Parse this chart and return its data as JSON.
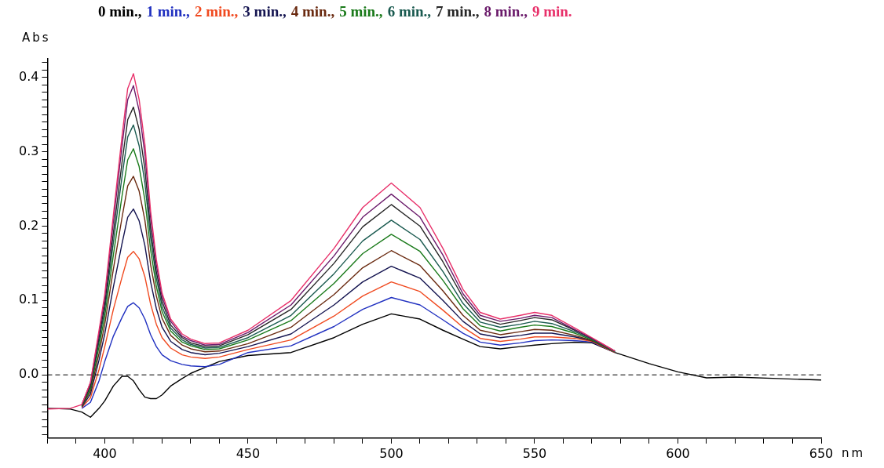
{
  "chart_data": {
    "type": "line",
    "xlabel": "nm",
    "ylabel": "Abs",
    "x": [
      380,
      388,
      392,
      395,
      398,
      400,
      403,
      406,
      408,
      410,
      412,
      414,
      416,
      418,
      420,
      423,
      427,
      430,
      435,
      440,
      450,
      465,
      480,
      490,
      500,
      510,
      518,
      525,
      531,
      538,
      545,
      550,
      556,
      564,
      570,
      578,
      590,
      600,
      610,
      620,
      635,
      650
    ],
    "series": [
      {
        "name": "0 min.,",
        "color": "#000000",
        "values": [
          -0.045,
          -0.046,
          -0.05,
          -0.057,
          -0.045,
          -0.035,
          -0.015,
          -0.002,
          -0.002,
          -0.008,
          -0.02,
          -0.03,
          -0.032,
          -0.032,
          -0.027,
          -0.015,
          -0.005,
          0.002,
          0.01,
          0.018,
          0.026,
          0.03,
          0.05,
          0.068,
          0.082,
          0.075,
          0.06,
          0.048,
          0.038,
          0.035,
          0.038,
          0.04,
          0.042,
          0.044,
          0.043,
          0.03,
          0.015,
          0.004,
          -0.004,
          -0.003,
          -0.005,
          -0.007
        ]
      },
      {
        "name": "1 min.,",
        "color": "#2030c0",
        "values": [
          null,
          null,
          -0.045,
          -0.037,
          -0.008,
          0.018,
          0.052,
          0.077,
          0.092,
          0.097,
          0.09,
          0.075,
          0.054,
          0.038,
          0.027,
          0.019,
          0.014,
          0.012,
          0.011,
          0.014,
          0.03,
          0.039,
          0.065,
          0.088,
          0.104,
          0.094,
          0.074,
          0.056,
          0.044,
          0.04,
          0.043,
          0.046,
          0.047,
          0.046,
          0.044,
          0.03,
          null,
          null,
          null,
          null,
          null,
          null
        ]
      },
      {
        "name": "2 min.,",
        "color": "#f04a20",
        "values": [
          null,
          null,
          -0.044,
          -0.031,
          0.007,
          0.038,
          0.088,
          0.131,
          0.158,
          0.166,
          0.156,
          0.132,
          0.095,
          0.068,
          0.05,
          0.036,
          0.027,
          0.024,
          0.022,
          0.024,
          0.034,
          0.047,
          0.079,
          0.106,
          0.125,
          0.112,
          0.087,
          0.064,
          0.049,
          0.045,
          0.048,
          0.051,
          0.051,
          0.049,
          0.045,
          0.03,
          null,
          null,
          null,
          null,
          null,
          null
        ]
      },
      {
        "name": "3 min.,",
        "color": "#141450",
        "values": [
          null,
          null,
          -0.043,
          -0.026,
          0.02,
          0.055,
          0.118,
          0.176,
          0.212,
          0.223,
          0.207,
          0.174,
          0.125,
          0.089,
          0.064,
          0.045,
          0.034,
          0.03,
          0.027,
          0.029,
          0.038,
          0.055,
          0.094,
          0.125,
          0.146,
          0.13,
          0.1,
          0.072,
          0.055,
          0.05,
          0.053,
          0.056,
          0.056,
          0.051,
          0.046,
          0.031,
          null,
          null,
          null,
          null,
          null,
          null
        ]
      },
      {
        "name": "4 min.,",
        "color": "#6a2a10",
        "values": [
          null,
          null,
          -0.042,
          -0.022,
          0.029,
          0.068,
          0.142,
          0.211,
          0.254,
          0.267,
          0.247,
          0.208,
          0.148,
          0.106,
          0.076,
          0.053,
          0.04,
          0.035,
          0.031,
          0.032,
          0.042,
          0.064,
          0.108,
          0.144,
          0.167,
          0.147,
          0.113,
          0.08,
          0.06,
          0.054,
          0.058,
          0.061,
          0.06,
          0.053,
          0.046,
          0.031,
          null,
          null,
          null,
          null,
          null,
          null
        ]
      },
      {
        "name": "5 min.,",
        "color": "#1a7a1a",
        "values": [
          null,
          null,
          -0.042,
          -0.019,
          0.038,
          0.079,
          0.161,
          0.24,
          0.289,
          0.304,
          0.28,
          0.235,
          0.168,
          0.119,
          0.085,
          0.059,
          0.044,
          0.039,
          0.034,
          0.035,
          0.047,
          0.073,
          0.123,
          0.163,
          0.189,
          0.166,
          0.127,
          0.089,
          0.066,
          0.059,
          0.064,
          0.067,
          0.065,
          0.056,
          0.047,
          0.031,
          null,
          null,
          null,
          null,
          null,
          null
        ]
      },
      {
        "name": "6 min.,",
        "color": "#1a5a50",
        "values": [
          null,
          null,
          -0.041,
          -0.016,
          0.045,
          0.088,
          0.178,
          0.266,
          0.32,
          0.336,
          0.308,
          0.258,
          0.184,
          0.13,
          0.092,
          0.063,
          0.047,
          0.041,
          0.036,
          0.037,
          0.05,
          0.08,
          0.136,
          0.18,
          0.208,
          0.182,
          0.139,
          0.096,
          0.071,
          0.064,
          0.068,
          0.072,
          0.069,
          0.058,
          0.048,
          0.031,
          null,
          null,
          null,
          null,
          null,
          null
        ]
      },
      {
        "name": "7 min.,",
        "color": "#262626",
        "values": [
          null,
          null,
          -0.041,
          -0.014,
          0.05,
          0.095,
          0.191,
          0.285,
          0.343,
          0.36,
          0.33,
          0.277,
          0.196,
          0.139,
          0.099,
          0.067,
          0.05,
          0.043,
          0.038,
          0.039,
          0.054,
          0.088,
          0.15,
          0.199,
          0.229,
          0.2,
          0.152,
          0.104,
          0.076,
          0.068,
          0.073,
          0.077,
          0.074,
          0.06,
          0.049,
          0.032,
          null,
          null,
          null,
          null,
          null,
          null
        ]
      },
      {
        "name": "8 min.,",
        "color": "#6a1a6a",
        "values": [
          null,
          null,
          -0.04,
          -0.011,
          0.056,
          0.103,
          0.206,
          0.307,
          0.37,
          0.389,
          0.355,
          0.297,
          0.211,
          0.148,
          0.105,
          0.072,
          0.052,
          0.046,
          0.04,
          0.041,
          0.057,
          0.094,
          0.16,
          0.212,
          0.243,
          0.212,
          0.161,
          0.109,
          0.08,
          0.072,
          0.076,
          0.08,
          0.077,
          0.061,
          0.049,
          0.032,
          null,
          null,
          null,
          null,
          null,
          null
        ]
      },
      {
        "name": "9 min.",
        "color": "#e8306a",
        "values": [
          -0.046,
          -0.045,
          -0.04,
          -0.01,
          0.06,
          0.108,
          0.215,
          0.32,
          0.385,
          0.405,
          0.37,
          0.31,
          0.22,
          0.155,
          0.11,
          0.075,
          0.055,
          0.048,
          0.042,
          0.043,
          0.06,
          0.1,
          0.17,
          0.225,
          0.258,
          0.225,
          0.17,
          0.115,
          0.084,
          0.075,
          0.08,
          0.084,
          0.08,
          0.063,
          0.05,
          0.032,
          null,
          null,
          null,
          null,
          null,
          null
        ]
      }
    ],
    "xlim": [
      380,
      650
    ],
    "xticks": [
      {
        "value": 380,
        "label": null
      },
      {
        "value": 390,
        "label": null
      },
      400,
      {
        "value": 410,
        "label": null
      },
      {
        "value": 420,
        "label": null
      },
      {
        "value": 430,
        "label": null
      },
      {
        "value": 440,
        "label": null
      },
      450,
      {
        "value": 460,
        "label": null
      },
      {
        "value": 470,
        "label": null
      },
      {
        "value": 480,
        "label": null
      },
      {
        "value": 490,
        "label": null
      },
      500,
      {
        "value": 510,
        "label": null
      },
      {
        "value": 520,
        "label": null
      },
      {
        "value": 530,
        "label": null
      },
      {
        "value": 540,
        "label": null
      },
      550,
      {
        "value": 560,
        "label": null
      },
      {
        "value": 570,
        "label": null
      },
      {
        "value": 580,
        "label": null
      },
      {
        "value": 590,
        "label": null
      },
      600,
      {
        "value": 610,
        "label": null
      },
      {
        "value": 620,
        "label": null
      },
      {
        "value": 630,
        "label": null
      },
      {
        "value": 640,
        "label": null
      },
      650
    ],
    "ylim": [
      -0.085,
      0.425
    ],
    "yticks": [
      {
        "value": -0.08,
        "label": null
      },
      {
        "value": -0.07,
        "label": null
      },
      {
        "value": -0.06,
        "label": null
      },
      {
        "value": -0.05,
        "label": null
      },
      {
        "value": -0.04,
        "label": null
      },
      {
        "value": -0.03,
        "label": null
      },
      {
        "value": -0.02,
        "label": null
      },
      {
        "value": -0.01,
        "label": null
      },
      {
        "value": 0,
        "label": "0.0"
      },
      {
        "value": 0.01,
        "label": null
      },
      {
        "value": 0.02,
        "label": null
      },
      {
        "value": 0.03,
        "label": null
      },
      {
        "value": 0.04,
        "label": null
      },
      {
        "value": 0.05,
        "label": null
      },
      {
        "value": 0.06,
        "label": null
      },
      {
        "value": 0.07,
        "label": null
      },
      {
        "value": 0.08,
        "label": null
      },
      {
        "value": 0.09,
        "label": null
      },
      0.1,
      {
        "value": 0.11,
        "label": null
      },
      {
        "value": 0.12,
        "label": null
      },
      {
        "value": 0.13,
        "label": null
      },
      {
        "value": 0.14,
        "label": null
      },
      {
        "value": 0.15,
        "label": null
      },
      {
        "value": 0.16,
        "label": null
      },
      {
        "value": 0.17,
        "label": null
      },
      {
        "value": 0.18,
        "label": null
      },
      {
        "value": 0.19,
        "label": null
      },
      0.2,
      {
        "value": 0.21,
        "label": null
      },
      {
        "value": 0.22,
        "label": null
      },
      {
        "value": 0.23,
        "label": null
      },
      {
        "value": 0.24,
        "label": null
      },
      {
        "value": 0.25,
        "label": null
      },
      {
        "value": 0.26,
        "label": null
      },
      {
        "value": 0.27,
        "label": null
      },
      {
        "value": 0.28,
        "label": null
      },
      {
        "value": 0.29,
        "label": null
      },
      0.3,
      {
        "value": 0.31,
        "label": null
      },
      {
        "value": 0.32,
        "label": null
      },
      {
        "value": 0.33,
        "label": null
      },
      {
        "value": 0.34,
        "label": null
      },
      {
        "value": 0.35,
        "label": null
      },
      {
        "value": 0.36,
        "label": null
      },
      {
        "value": 0.37,
        "label": null
      },
      {
        "value": 0.38,
        "label": null
      },
      {
        "value": 0.39,
        "label": null
      },
      0.4,
      {
        "value": 0.41,
        "label": null
      },
      {
        "value": 0.42,
        "label": null
      }
    ],
    "ref_lines": [
      {
        "axis": "y",
        "value": 0,
        "color": "#000000",
        "line_style": "dashed"
      }
    ],
    "grid": false,
    "legend": "top",
    "marker": "none",
    "line_style": "solid"
  }
}
